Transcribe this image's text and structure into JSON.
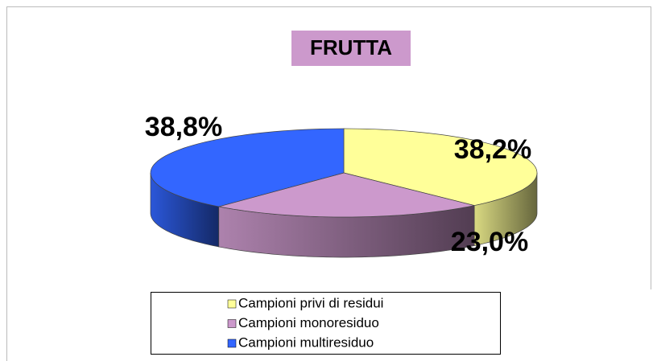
{
  "chart_data": {
    "type": "pie",
    "title": "FRUTTA",
    "categories": [
      "Campioni privi di residui",
      "Campioni monoresiduo",
      "Campioni multiresiduo"
    ],
    "values": [
      38.2,
      23.0,
      38.8
    ],
    "value_labels": [
      "38,2%",
      "23,0%",
      "38,8%"
    ],
    "colors": [
      "#ffff99",
      "#cc99cc",
      "#3366ff"
    ]
  }
}
